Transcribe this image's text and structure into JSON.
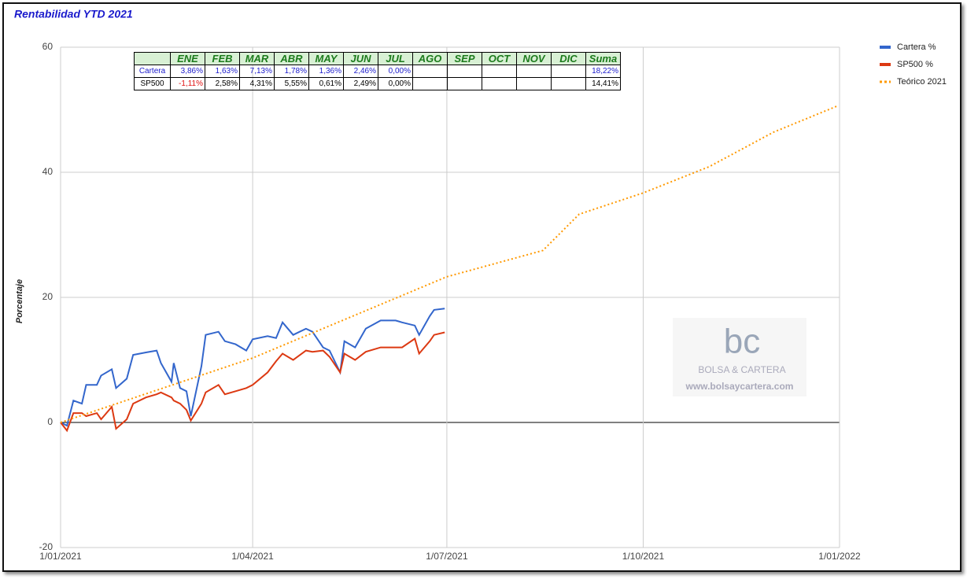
{
  "chart_data": {
    "type": "line",
    "title": "Rentabilidad YTD 2021",
    "y_label": "Porcentaje",
    "xlim": [
      "2021-01-01",
      "2022-01-01"
    ],
    "xticks": [
      {
        "value": "2021-01-01",
        "label": "1/01/2021"
      },
      {
        "value": "2021-04-01",
        "label": "1/04/2021"
      },
      {
        "value": "2021-07-01",
        "label": "1/07/2021"
      },
      {
        "value": "2021-10-01",
        "label": "1/10/2021"
      },
      {
        "value": "2022-01-01",
        "label": "1/01/2022"
      }
    ],
    "ylim": [
      -20,
      60
    ],
    "yticks": [
      -20,
      0,
      20,
      40,
      60
    ],
    "grid": true,
    "legend": "right",
    "series": [
      {
        "name": "Cartera %",
        "color": "#3366cc",
        "style": "solid",
        "x": [
          "2021-01-01",
          "2021-01-04",
          "2021-01-07",
          "2021-01-11",
          "2021-01-13",
          "2021-01-18",
          "2021-01-20",
          "2021-01-25",
          "2021-01-27",
          "2021-02-01",
          "2021-02-04",
          "2021-02-10",
          "2021-02-15",
          "2021-02-17",
          "2021-02-22",
          "2021-02-23",
          "2021-02-26",
          "2021-03-01",
          "2021-03-03",
          "2021-03-08",
          "2021-03-10",
          "2021-03-16",
          "2021-03-19",
          "2021-03-24",
          "2021-03-29",
          "2021-04-01",
          "2021-04-08",
          "2021-04-12",
          "2021-04-15",
          "2021-04-20",
          "2021-04-26",
          "2021-04-29",
          "2021-05-04",
          "2021-05-07",
          "2021-05-12",
          "2021-05-14",
          "2021-05-19",
          "2021-05-24",
          "2021-05-31",
          "2021-06-07",
          "2021-06-10",
          "2021-06-16",
          "2021-06-18",
          "2021-06-23",
          "2021-06-25",
          "2021-06-30"
        ],
        "values": [
          0,
          -0.5,
          3.5,
          3,
          6,
          6,
          7.5,
          8.5,
          5.5,
          7,
          10.8,
          11.2,
          11.5,
          9.5,
          6.5,
          9.5,
          5.5,
          5,
          1,
          9,
          14,
          14.5,
          13,
          12.5,
          11.5,
          13.3,
          13.8,
          13.5,
          16,
          14,
          15,
          14.5,
          12,
          11.5,
          8,
          13,
          12,
          15,
          16.3,
          16.3,
          16,
          15.5,
          14,
          17,
          18,
          18.2
        ]
      },
      {
        "name": "SP500 %",
        "color": "#dc3912",
        "style": "solid",
        "x": [
          "2021-01-01",
          "2021-01-04",
          "2021-01-07",
          "2021-01-11",
          "2021-01-13",
          "2021-01-18",
          "2021-01-20",
          "2021-01-25",
          "2021-01-27",
          "2021-02-01",
          "2021-02-04",
          "2021-02-10",
          "2021-02-15",
          "2021-02-17",
          "2021-02-22",
          "2021-02-23",
          "2021-02-26",
          "2021-03-01",
          "2021-03-03",
          "2021-03-08",
          "2021-03-10",
          "2021-03-16",
          "2021-03-19",
          "2021-03-24",
          "2021-03-29",
          "2021-04-01",
          "2021-04-08",
          "2021-04-12",
          "2021-04-15",
          "2021-04-20",
          "2021-04-26",
          "2021-04-29",
          "2021-05-04",
          "2021-05-07",
          "2021-05-12",
          "2021-05-14",
          "2021-05-19",
          "2021-05-24",
          "2021-05-31",
          "2021-06-07",
          "2021-06-10",
          "2021-06-16",
          "2021-06-18",
          "2021-06-23",
          "2021-06-25",
          "2021-06-30"
        ],
        "values": [
          0,
          -1.3,
          1.5,
          1.5,
          1,
          1.5,
          0.5,
          2.5,
          -1,
          0.5,
          3,
          4,
          4.5,
          4.8,
          4,
          3.5,
          3,
          2,
          0.3,
          3,
          4.8,
          6,
          4.5,
          5,
          5.5,
          6,
          8,
          9.8,
          11,
          10,
          11.5,
          11.3,
          11.5,
          10.5,
          8,
          11,
          10,
          11.3,
          12,
          12,
          12,
          13.4,
          11,
          13,
          14,
          14.4
        ]
      },
      {
        "name": "Teórico 2021",
        "color": "#ff9900",
        "style": "dotted",
        "x": [
          "2021-01-01",
          "2021-04-01",
          "2021-07-01",
          "2021-08-15",
          "2021-09-01",
          "2021-10-01",
          "2021-11-01",
          "2021-12-01",
          "2021-12-31"
        ],
        "values": [
          0,
          10.3,
          23.3,
          27.5,
          33.3,
          36.7,
          40.9,
          46.4,
          50.6
        ]
      }
    ],
    "table": {
      "header": [
        "ENE",
        "FEB",
        "MAR",
        "ABR",
        "MAY",
        "JUN",
        "JUL",
        "AGO",
        "SEP",
        "OCT",
        "NOV",
        "DIC",
        "Suma"
      ],
      "rows": [
        {
          "name": "Cartera",
          "months": [
            "3,86%",
            "1,63%",
            "7,13%",
            "1,78%",
            "1,36%",
            "2,46%",
            "0,00%"
          ],
          "sum": "18,22%"
        },
        {
          "name": "SP500",
          "months": [
            "-1,11%",
            "2,58%",
            "4,31%",
            "5,55%",
            "0,61%",
            "2,49%",
            "0,00%"
          ],
          "sum": "14,41%"
        }
      ]
    },
    "watermark": {
      "logo": "bc",
      "name": "BOLSA & CARTERA",
      "url": "www.bolsaycartera.com"
    }
  }
}
